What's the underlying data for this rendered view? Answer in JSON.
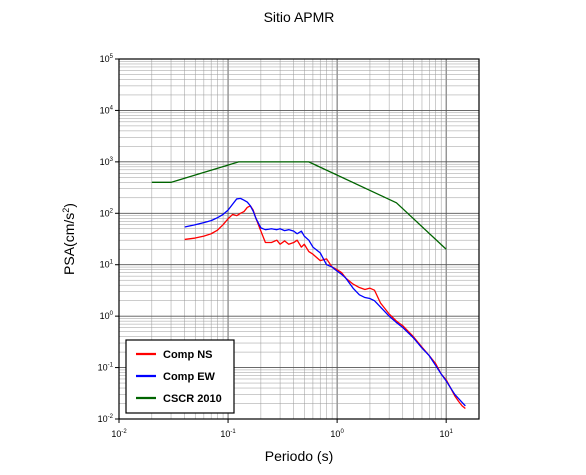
{
  "chart_data": {
    "type": "line",
    "title": "Sitio APMR",
    "xlabel": "Periodo (s)",
    "ylabel_base": "PSA(cm/s",
    "ylabel_sup": "2",
    "ylabel_close": ")",
    "x_scale": "log",
    "y_scale": "log",
    "xlim": [
      0.01,
      20
    ],
    "ylim": [
      0.01,
      100000
    ],
    "grid": true,
    "legend_position": "bottom-left",
    "x_ticks": [
      {
        "base": "10",
        "exp": "-2",
        "value": 0.01
      },
      {
        "base": "10",
        "exp": "-1",
        "value": 0.1
      },
      {
        "base": "10",
        "exp": "0",
        "value": 1
      },
      {
        "base": "10",
        "exp": "1",
        "value": 10
      }
    ],
    "y_ticks": [
      {
        "base": "10",
        "exp": "-2",
        "value": 0.01
      },
      {
        "base": "10",
        "exp": "-1",
        "value": 0.1
      },
      {
        "base": "10",
        "exp": "0",
        "value": 1
      },
      {
        "base": "10",
        "exp": "1",
        "value": 10
      },
      {
        "base": "10",
        "exp": "2",
        "value": 100
      },
      {
        "base": "10",
        "exp": "3",
        "value": 1000
      },
      {
        "base": "10",
        "exp": "4",
        "value": 10000
      },
      {
        "base": "10",
        "exp": "5",
        "value": 100000
      }
    ],
    "series": [
      {
        "name": "Comp NS",
        "color": "#ff0000",
        "points": [
          [
            0.04,
            31
          ],
          [
            0.05,
            33
          ],
          [
            0.06,
            36
          ],
          [
            0.07,
            40
          ],
          [
            0.08,
            47
          ],
          [
            0.09,
            60
          ],
          [
            0.1,
            78
          ],
          [
            0.11,
            95
          ],
          [
            0.12,
            90
          ],
          [
            0.13,
            100
          ],
          [
            0.14,
            108
          ],
          [
            0.15,
            130
          ],
          [
            0.16,
            140
          ],
          [
            0.17,
            115
          ],
          [
            0.18,
            80
          ],
          [
            0.2,
            45
          ],
          [
            0.22,
            27
          ],
          [
            0.25,
            27
          ],
          [
            0.28,
            30
          ],
          [
            0.3,
            25
          ],
          [
            0.33,
            29
          ],
          [
            0.36,
            25
          ],
          [
            0.4,
            27
          ],
          [
            0.43,
            30
          ],
          [
            0.47,
            22
          ],
          [
            0.5,
            25
          ],
          [
            0.55,
            18
          ],
          [
            0.6,
            16
          ],
          [
            0.7,
            12
          ],
          [
            0.8,
            13
          ],
          [
            0.9,
            9
          ],
          [
            1.0,
            8
          ],
          [
            1.1,
            7
          ],
          [
            1.2,
            5.5
          ],
          [
            1.4,
            4.2
          ],
          [
            1.6,
            3.6
          ],
          [
            1.8,
            3.3
          ],
          [
            2.0,
            3.5
          ],
          [
            2.2,
            3.2
          ],
          [
            2.5,
            1.8
          ],
          [
            3.0,
            1.1
          ],
          [
            3.5,
            0.8
          ],
          [
            4.0,
            0.65
          ],
          [
            5.0,
            0.4
          ],
          [
            6.0,
            0.25
          ],
          [
            7.0,
            0.17
          ],
          [
            8.0,
            0.12
          ],
          [
            9.0,
            0.075
          ],
          [
            10,
            0.058
          ],
          [
            11,
            0.04
          ],
          [
            12,
            0.028
          ],
          [
            13,
            0.022
          ],
          [
            14,
            0.018
          ],
          [
            15,
            0.016
          ]
        ]
      },
      {
        "name": "Comp EW",
        "color": "#0000ff",
        "points": [
          [
            0.04,
            54
          ],
          [
            0.05,
            60
          ],
          [
            0.06,
            66
          ],
          [
            0.07,
            72
          ],
          [
            0.08,
            82
          ],
          [
            0.09,
            95
          ],
          [
            0.1,
            115
          ],
          [
            0.11,
            150
          ],
          [
            0.12,
            190
          ],
          [
            0.13,
            195
          ],
          [
            0.14,
            180
          ],
          [
            0.15,
            165
          ],
          [
            0.16,
            140
          ],
          [
            0.17,
            110
          ],
          [
            0.18,
            80
          ],
          [
            0.2,
            52
          ],
          [
            0.22,
            48
          ],
          [
            0.25,
            50
          ],
          [
            0.28,
            48
          ],
          [
            0.3,
            50
          ],
          [
            0.33,
            46
          ],
          [
            0.36,
            48
          ],
          [
            0.4,
            45
          ],
          [
            0.43,
            40
          ],
          [
            0.47,
            45
          ],
          [
            0.5,
            36
          ],
          [
            0.55,
            30
          ],
          [
            0.6,
            22
          ],
          [
            0.7,
            17
          ],
          [
            0.8,
            10
          ],
          [
            0.9,
            9
          ],
          [
            1.0,
            7.5
          ],
          [
            1.1,
            6.5
          ],
          [
            1.2,
            5.5
          ],
          [
            1.4,
            3.5
          ],
          [
            1.6,
            2.6
          ],
          [
            1.8,
            2.3
          ],
          [
            2.0,
            2.2
          ],
          [
            2.2,
            2.0
          ],
          [
            2.5,
            1.5
          ],
          [
            3.0,
            1.0
          ],
          [
            3.5,
            0.75
          ],
          [
            4.0,
            0.6
          ],
          [
            5.0,
            0.38
          ],
          [
            6.0,
            0.24
          ],
          [
            7.0,
            0.17
          ],
          [
            8.0,
            0.11
          ],
          [
            9.0,
            0.075
          ],
          [
            10,
            0.055
          ],
          [
            11,
            0.04
          ],
          [
            12,
            0.03
          ],
          [
            13,
            0.025
          ],
          [
            14,
            0.021
          ],
          [
            15,
            0.018
          ]
        ]
      },
      {
        "name": "CSCR 2010",
        "color": "#006400",
        "points": [
          [
            0.02,
            400
          ],
          [
            0.03,
            400
          ],
          [
            0.125,
            1000
          ],
          [
            0.55,
            1000
          ],
          [
            3.5,
            160
          ],
          [
            10,
            20
          ]
        ]
      }
    ]
  }
}
